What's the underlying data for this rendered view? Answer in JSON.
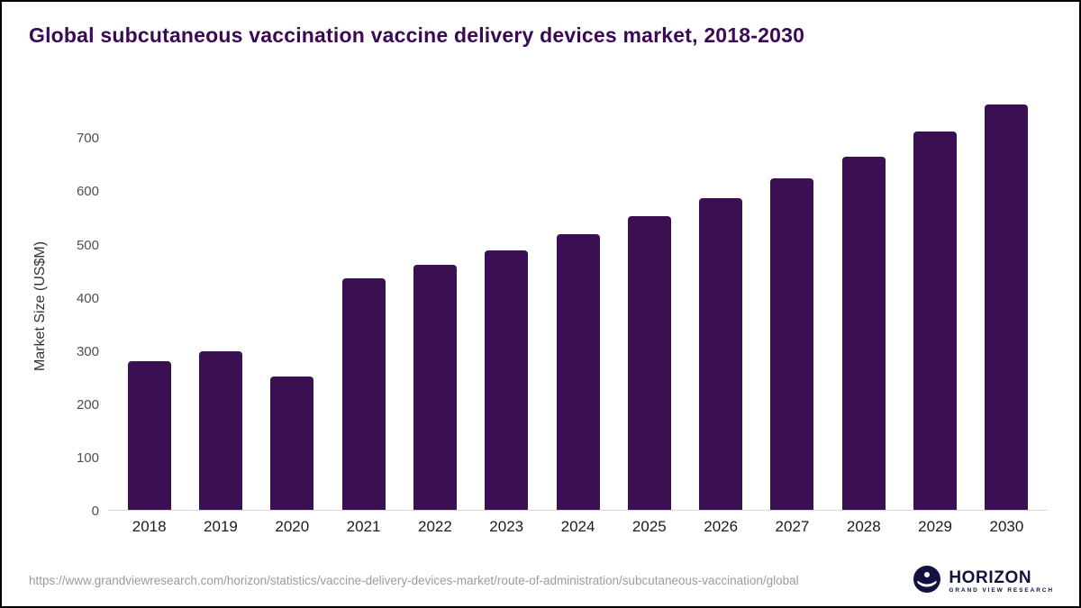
{
  "header": {
    "title": "Global subcutaneous vaccination vaccine delivery devices market, 2018-2030"
  },
  "chart_data": {
    "type": "bar",
    "title": "Global subcutaneous vaccination vaccine delivery devices market, 2018-2030",
    "categories": [
      "2018",
      "2019",
      "2020",
      "2021",
      "2022",
      "2023",
      "2024",
      "2025",
      "2026",
      "2027",
      "2028",
      "2029",
      "2030"
    ],
    "values": [
      280,
      297,
      251,
      435,
      461,
      488,
      518,
      551,
      586,
      623,
      664,
      710,
      762
    ],
    "xlabel": "",
    "ylabel": "Market Size (US$M)",
    "yticks": [
      0,
      100,
      200,
      300,
      400,
      500,
      600,
      700
    ],
    "ylim": [
      0,
      770
    ],
    "grid": false,
    "legend": false
  },
  "footer": {
    "source_url": "https://www.grandviewresearch.com/horizon/statistics/vaccine-delivery-devices-market/route-of-administration/subcutaneous-vaccination/global",
    "logo": {
      "name": "HORIZON",
      "subtitle": "GRAND VIEW RESEARCH"
    }
  },
  "colors": {
    "bar": "#3b1053",
    "title": "#3b0a55",
    "axis_text": "#4f4f4f",
    "x_label_text": "#1c1c1c",
    "source_text": "#9b9b9b",
    "logo_navy": "#11123f",
    "baseline": "#d8d8d8"
  }
}
